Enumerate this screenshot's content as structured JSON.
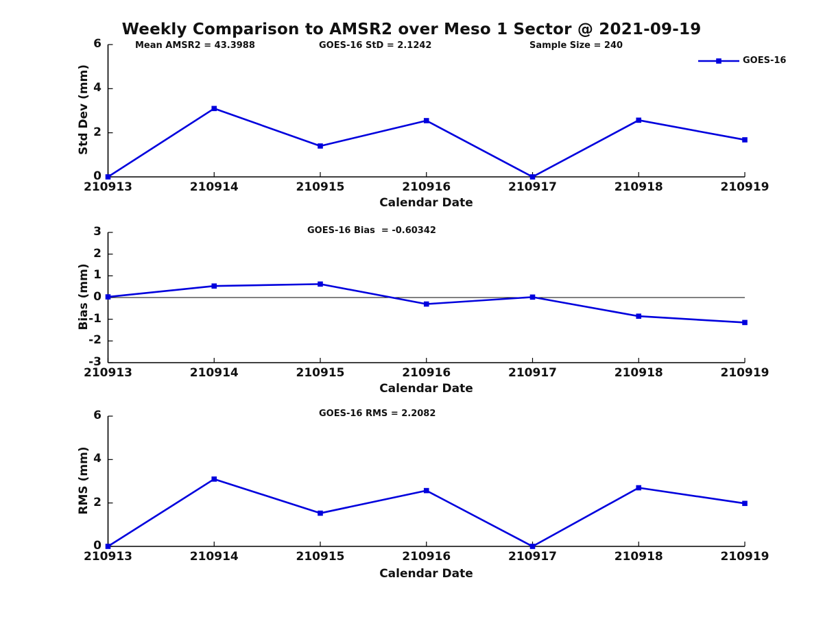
{
  "figure": {
    "title": "Weekly Comparison to AMSR2 over Meso 1 Sector @ 2021-09-19",
    "stats": {
      "mean_amsr2": "Mean AMSR2 = 43.3988",
      "goes16_std": "GOES-16 StD = 2.1242",
      "sample_size": "Sample Size = 240"
    },
    "legend": {
      "label": "GOES-16",
      "marker": "square"
    }
  },
  "colors": {
    "series": "#0000DD",
    "axis": "#000000",
    "text": "#111111",
    "background": "#FFFFFF"
  },
  "chart_data": [
    {
      "type": "line",
      "title": "",
      "ylabel": "Std Dev (mm)",
      "xlabel": "Calendar Date",
      "categories": [
        "210913",
        "210914",
        "210915",
        "210916",
        "210917",
        "210918",
        "210919"
      ],
      "series": [
        {
          "name": "GOES-16",
          "marker": "square",
          "values": [
            0.0,
            3.1,
            1.4,
            2.55,
            0.0,
            2.57,
            1.68
          ]
        }
      ],
      "ylim": [
        0,
        6
      ],
      "yticks": [
        0,
        2,
        4,
        6
      ],
      "zero_line": false,
      "grid": false,
      "legend_position": "outside-top-right"
    },
    {
      "type": "line",
      "title": "GOES-16 Bias  = -0.60342",
      "ylabel": "Bias (mm)",
      "xlabel": "Calendar Date",
      "categories": [
        "210913",
        "210914",
        "210915",
        "210916",
        "210917",
        "210918",
        "210919"
      ],
      "series": [
        {
          "name": "GOES-16",
          "marker": "square",
          "values": [
            0.03,
            0.53,
            0.62,
            -0.3,
            0.02,
            -0.86,
            -1.15
          ]
        }
      ],
      "ylim": [
        -3,
        3
      ],
      "yticks": [
        -3,
        -2,
        -1,
        0,
        1,
        2,
        3
      ],
      "zero_line": true,
      "grid": false
    },
    {
      "type": "line",
      "title": "GOES-16 RMS = 2.2082",
      "ylabel": "RMS (mm)",
      "xlabel": "Calendar Date",
      "categories": [
        "210913",
        "210914",
        "210915",
        "210916",
        "210917",
        "210918",
        "210919"
      ],
      "series": [
        {
          "name": "GOES-16",
          "marker": "square",
          "values": [
            0.0,
            3.1,
            1.53,
            2.57,
            0.0,
            2.7,
            1.98
          ]
        }
      ],
      "ylim": [
        0,
        6
      ],
      "yticks": [
        0,
        2,
        4,
        6
      ],
      "zero_line": false,
      "grid": false
    }
  ]
}
